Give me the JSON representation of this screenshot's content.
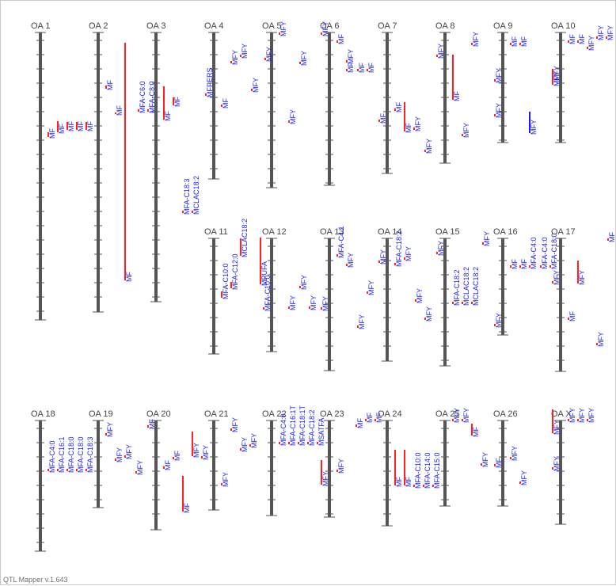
{
  "app": {
    "footer": "QTL Mapper v.1.643"
  },
  "colors": {
    "chromosome": "#555555",
    "interval": "#ff2020",
    "label": "#1a1aff",
    "peak": "#ff2020"
  },
  "chromosomes": [
    {
      "name": "OA 1",
      "length": 363,
      "qtls": [
        {
          "start": 126,
          "end": 132,
          "label": "MF"
        },
        {
          "start": 112,
          "end": 126,
          "label": "MF"
        },
        {
          "start": 113,
          "end": 123,
          "label": "MF"
        },
        {
          "start": 113,
          "end": 123,
          "label": "MF"
        },
        {
          "start": 113,
          "end": 123,
          "label": "MF"
        }
      ]
    },
    {
      "name": "OA 2",
      "length": 353,
      "qtls": [
        {
          "start": 67,
          "end": 71,
          "label": "MF"
        },
        {
          "start": 101,
          "end": 103,
          "label": "MF"
        },
        {
          "start": 13,
          "end": 313,
          "label": "MF"
        }
      ]
    },
    {
      "name": "OA 3",
      "length": 340,
      "qtls": [
        {
          "start": 97,
          "end": 100,
          "label": "MFA-C6:0"
        },
        {
          "start": 97,
          "end": 100,
          "label": "MFA-C8:0"
        },
        {
          "start": 68,
          "end": 110,
          "label": "MF"
        },
        {
          "start": 82,
          "end": 92,
          "label": "MF"
        },
        {
          "start": 225,
          "end": 228,
          "label": "MFA-C18:3"
        },
        {
          "start": 225,
          "end": 228,
          "label": "MCLAC18:2"
        }
      ]
    },
    {
      "name": "OA 4",
      "length": 185,
      "qtls": [
        {
          "start": 77,
          "end": 80,
          "label": "MFPERS"
        },
        {
          "start": 91,
          "end": 94,
          "label": "MF"
        },
        {
          "start": 36,
          "end": 39,
          "label": "MFY"
        },
        {
          "start": 28,
          "end": 31,
          "label": "MFY"
        },
        {
          "start": 71,
          "end": 74,
          "label": "MFY"
        }
      ]
    },
    {
      "name": "OA 5",
      "length": 196,
      "qtls": [
        {
          "start": 32,
          "end": 35,
          "label": "MFY"
        },
        {
          "start": 111,
          "end": 114,
          "label": "MFY"
        },
        {
          "start": 0,
          "end": 3,
          "label": "MFY"
        },
        {
          "start": 37,
          "end": 40,
          "label": "MFY"
        }
      ]
    },
    {
      "name": "OA 6",
      "length": 193,
      "qtls": [
        {
          "start": 0,
          "end": 3,
          "label": "MFY"
        },
        {
          "start": 35,
          "end": 38,
          "label": "MFY"
        },
        {
          "start": 10,
          "end": 13,
          "label": "MF"
        },
        {
          "start": 46,
          "end": 49,
          "label": "MF"
        },
        {
          "start": 46,
          "end": 49,
          "label": "MF"
        },
        {
          "start": 46,
          "end": 49,
          "label": "MF"
        }
      ]
    },
    {
      "name": "OA 7",
      "length": 178,
      "qtls": [
        {
          "start": 110,
          "end": 113,
          "label": "MF"
        },
        {
          "start": 96,
          "end": 99,
          "label": "MF"
        },
        {
          "start": 88,
          "end": 125,
          "label": "MF"
        },
        {
          "start": 120,
          "end": 123,
          "label": "MFY"
        },
        {
          "start": 148,
          "end": 151,
          "label": "MFY"
        }
      ]
    },
    {
      "name": "OA 8",
      "length": 165,
      "qtls": [
        {
          "start": 28,
          "end": 31,
          "label": "MFY"
        },
        {
          "start": 28,
          "end": 85,
          "label": "MF"
        },
        {
          "start": 128,
          "end": 131,
          "label": "MFY"
        },
        {
          "start": 13,
          "end": 16,
          "label": "MFY"
        }
      ]
    },
    {
      "name": "OA 9",
      "length": 139,
      "qtls": [
        {
          "start": 103,
          "end": 106,
          "label": "MFY"
        },
        {
          "start": 59,
          "end": 62,
          "label": "MFY"
        },
        {
          "start": 13,
          "end": 16,
          "label": "MF"
        },
        {
          "start": 13,
          "end": 16,
          "label": "MF"
        },
        {
          "start": 100,
          "end": 127,
          "label": "MFY",
          "color": "#1a1aff"
        }
      ]
    },
    {
      "name": "OA 10",
      "length": 139,
      "qtls": [
        {
          "start": 56,
          "end": 59,
          "label": "MFY"
        },
        {
          "start": 46,
          "end": 66,
          "label": "MFY"
        },
        {
          "start": 10,
          "end": 13,
          "label": "MF"
        },
        {
          "start": 10,
          "end": 13,
          "label": "MF"
        },
        {
          "start": 18,
          "end": 21,
          "label": "MFY"
        },
        {
          "start": 5,
          "end": 8,
          "label": "MFY"
        },
        {
          "start": 5,
          "end": 8,
          "label": "MFY"
        }
      ]
    },
    {
      "name": "OA 11",
      "length": 146,
      "qtls": [
        {
          "start": 67,
          "end": 75,
          "label": "MFA-C10:0"
        },
        {
          "start": 55,
          "end": 63,
          "label": "MFA-C12:0"
        },
        {
          "start": 0,
          "end": 22,
          "label": "MCLAC18:2"
        }
      ]
    },
    {
      "name": "OA 12",
      "length": 143,
      "qtls": [
        {
          "start": -1,
          "end": 58,
          "label": "MPUFA"
        },
        {
          "start": 87,
          "end": 90,
          "label": "MFA-C10:0"
        },
        {
          "start": 86,
          "end": 89,
          "label": "MFY"
        },
        {
          "start": 60,
          "end": 63,
          "label": "MFY"
        },
        {
          "start": 86,
          "end": 89,
          "label": "MFY"
        }
      ]
    },
    {
      "name": "OA 13",
      "length": 167,
      "qtls": [
        {
          "start": 87,
          "end": 90,
          "label": "MFY"
        },
        {
          "start": 20,
          "end": 23,
          "label": "MFA-C4:1"
        },
        {
          "start": 32,
          "end": 35,
          "label": "MFY"
        },
        {
          "start": 110,
          "end": 113,
          "label": "MFY"
        },
        {
          "start": 67,
          "end": 70,
          "label": "MFY"
        }
      ]
    },
    {
      "name": "OA 14",
      "length": 155,
      "qtls": [
        {
          "start": 28,
          "end": 31,
          "label": "MFY"
        },
        {
          "start": 31,
          "end": 34,
          "label": "MFA-C18:2"
        },
        {
          "start": 24,
          "end": 27,
          "label": "MFY"
        },
        {
          "start": 77,
          "end": 80,
          "label": "MFY"
        },
        {
          "start": 100,
          "end": 103,
          "label": "MFY"
        }
      ]
    },
    {
      "name": "OA 15",
      "length": 161,
      "qtls": [
        {
          "start": 17,
          "end": 20,
          "label": "MFY"
        },
        {
          "start": 80,
          "end": 83,
          "label": "MFA-C18:2"
        },
        {
          "start": 80,
          "end": 83,
          "label": "MCLAC18:2"
        },
        {
          "start": 80,
          "end": 83,
          "label": "MCLAC18:2"
        },
        {
          "start": 5,
          "end": 8,
          "label": "MFY"
        }
      ]
    },
    {
      "name": "OA 16",
      "length": 122,
      "qtls": [
        {
          "start": 108,
          "end": 111,
          "label": "MFY"
        },
        {
          "start": 34,
          "end": 37,
          "label": "MF"
        },
        {
          "start": 34,
          "end": 37,
          "label": "MF"
        },
        {
          "start": 34,
          "end": 37,
          "label": "MFA-C4:0"
        },
        {
          "start": 34,
          "end": 37,
          "label": "MFA-C4:0"
        },
        {
          "start": 34,
          "end": 37,
          "label": "MFA-C18:0"
        }
      ]
    },
    {
      "name": "OA 17",
      "length": 168,
      "qtls": [
        {
          "start": 54,
          "end": 57,
          "label": "MFY"
        },
        {
          "start": 28,
          "end": 57,
          "label": "MFY"
        },
        {
          "start": 100,
          "end": 103,
          "label": "MF"
        },
        {
          "start": 132,
          "end": 135,
          "label": "MFY"
        },
        {
          "start": 0,
          "end": 3,
          "label": "MF"
        }
      ]
    },
    {
      "name": "OA 18",
      "length": 165,
      "qtls": [
        {
          "start": 61,
          "end": 64,
          "label": "MFA-C4:0"
        },
        {
          "start": 61,
          "end": 64,
          "label": "MFA-C16:1"
        },
        {
          "start": 61,
          "end": 64,
          "label": "MFA-C18:0"
        },
        {
          "start": 61,
          "end": 64,
          "label": "MFA-C18:0"
        },
        {
          "start": 61,
          "end": 64,
          "label": "MFA-C18:3"
        }
      ]
    },
    {
      "name": "OA 19",
      "length": 110,
      "qtls": [
        {
          "start": 16,
          "end": 19,
          "label": "MFY"
        },
        {
          "start": 48,
          "end": 51,
          "label": "MFY"
        },
        {
          "start": 44,
          "end": 47,
          "label": "MFY"
        },
        {
          "start": 64,
          "end": 67,
          "label": "MFY"
        }
      ]
    },
    {
      "name": "OA 20",
      "length": 138,
      "qtls": [
        {
          "start": 6,
          "end": 9,
          "label": "MF"
        },
        {
          "start": 58,
          "end": 61,
          "label": "MF"
        },
        {
          "start": 46,
          "end": 49,
          "label": "MF"
        },
        {
          "start": 70,
          "end": 115,
          "label": "MF"
        },
        {
          "start": 14,
          "end": 45,
          "label": "MFY"
        },
        {
          "start": 45,
          "end": 48,
          "label": "MFY"
        }
      ]
    },
    {
      "name": "OA 21",
      "length": 113,
      "qtls": [
        {
          "start": 79,
          "end": 82,
          "label": "MFY"
        },
        {
          "start": 10,
          "end": 13,
          "label": "MFY"
        },
        {
          "start": 35,
          "end": 38,
          "label": "MFY"
        },
        {
          "start": 30,
          "end": 33,
          "label": "MFY"
        }
      ]
    },
    {
      "name": "OA 22",
      "length": 120,
      "qtls": [
        {
          "start": 27,
          "end": 30,
          "label": "MFA-C4:0"
        },
        {
          "start": 27,
          "end": 30,
          "label": "MFA-C16:1T"
        },
        {
          "start": 27,
          "end": 30,
          "label": "MFA-C18:1T"
        },
        {
          "start": 27,
          "end": 30,
          "label": "MFA-C18:2"
        },
        {
          "start": 27,
          "end": 30,
          "label": "MSATFA"
        }
      ]
    },
    {
      "name": "OA 23",
      "length": 122,
      "qtls": [
        {
          "start": 50,
          "end": 81,
          "label": "MFY"
        },
        {
          "start": 62,
          "end": 65,
          "label": "MFY"
        },
        {
          "start": 5,
          "end": 8,
          "label": "MF"
        },
        {
          "start": -2,
          "end": 1,
          "label": "MF"
        },
        {
          "start": -2,
          "end": 1,
          "label": "MF"
        }
      ]
    },
    {
      "name": "OA 24",
      "length": 133,
      "qtls": [
        {
          "start": 37,
          "end": 82,
          "label": "MF"
        },
        {
          "start": 37,
          "end": 82,
          "label": "MF"
        },
        {
          "start": 81,
          "end": 84,
          "label": "MFA-C10:0"
        },
        {
          "start": 81,
          "end": 84,
          "label": "MFA-C14:0"
        },
        {
          "start": 81,
          "end": 84,
          "label": "MFA-C15:0"
        }
      ]
    },
    {
      "name": "OA 25",
      "length": 108,
      "qtls": [
        {
          "start": -2,
          "end": 1,
          "label": "MFY"
        },
        {
          "start": -2,
          "end": 1,
          "label": "MFY"
        },
        {
          "start": 4,
          "end": 19,
          "label": "MF"
        },
        {
          "start": 54,
          "end": 57,
          "label": "MFY"
        }
      ]
    },
    {
      "name": "OA 26",
      "length": 108,
      "qtls": [
        {
          "start": 55,
          "end": 58,
          "label": "MF"
        },
        {
          "start": 46,
          "end": 49,
          "label": "MFY"
        },
        {
          "start": 77,
          "end": 80,
          "label": "MFY"
        }
      ]
    },
    {
      "name": "OA X",
      "length": 131,
      "qtls": [
        {
          "start": 59,
          "end": 62,
          "label": "MFY"
        },
        {
          "start": -14,
          "end": 16,
          "label": "MFY"
        },
        {
          "start": -2,
          "end": 1,
          "label": "MFY"
        },
        {
          "start": -2,
          "end": 1,
          "label": "MFY"
        },
        {
          "start": -2,
          "end": 1,
          "label": "MFY"
        }
      ]
    }
  ]
}
